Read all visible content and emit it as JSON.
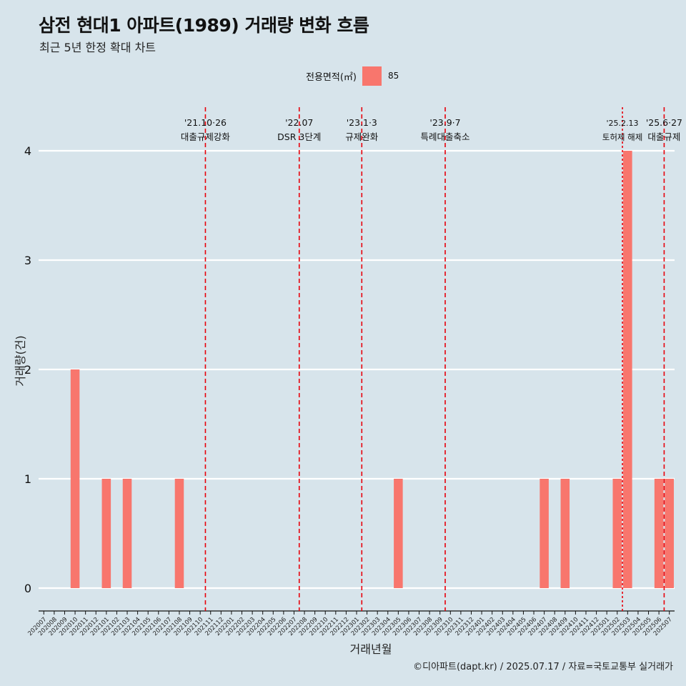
{
  "colors": {
    "background": "#d7e4eb",
    "bar": "#f8766d",
    "event_line": "#e8000b",
    "grid": "#ffffff"
  },
  "title": "삼전 현대1 아파트(1989) 거래량 변화 흐름",
  "subtitle": "최근 5년 한정 확대 차트",
  "caption": "©디아파트(dapt.kr) / 2025.07.17 / 자료=국토교통부 실거래가",
  "legend": {
    "title": "전용면적(㎡)",
    "items": [
      {
        "label": "85",
        "color": "#f8766d"
      }
    ],
    "position": "top"
  },
  "chart_data": {
    "type": "bar",
    "xlabel": "거래년월",
    "ylabel": "거래량(건)",
    "ylim": [
      0,
      4
    ],
    "yticks": [
      0,
      1,
      2,
      3,
      4
    ],
    "grid": true,
    "categories": [
      "202007",
      "202008",
      "202009",
      "202010",
      "202011",
      "202012",
      "202101",
      "202102",
      "202103",
      "202104",
      "202105",
      "202106",
      "202107",
      "202108",
      "202109",
      "202110",
      "202111",
      "202112",
      "202201",
      "202202",
      "202203",
      "202204",
      "202205",
      "202206",
      "202207",
      "202208",
      "202209",
      "202210",
      "202211",
      "202212",
      "202301",
      "202302",
      "202303",
      "202304",
      "202305",
      "202306",
      "202307",
      "202308",
      "202309",
      "202310",
      "202311",
      "202312",
      "202401",
      "202402",
      "202403",
      "202404",
      "202405",
      "202406",
      "202407",
      "202408",
      "202409",
      "202410",
      "202411",
      "202412",
      "202501",
      "202502",
      "202503",
      "202504",
      "202505",
      "202506",
      "202507"
    ],
    "series": [
      {
        "name": "85",
        "values": [
          0,
          0,
          0,
          2,
          0,
          0,
          1,
          0,
          1,
          0,
          0,
          0,
          0,
          1,
          0,
          0,
          0,
          0,
          0,
          0,
          0,
          0,
          0,
          0,
          0,
          0,
          0,
          0,
          0,
          0,
          0,
          0,
          0,
          0,
          1,
          0,
          0,
          0,
          0,
          0,
          0,
          0,
          0,
          0,
          0,
          0,
          0,
          0,
          1,
          0,
          1,
          0,
          0,
          0,
          0,
          1,
          4,
          0,
          0,
          1,
          1
        ]
      }
    ],
    "events": [
      {
        "date": "'21.10·26",
        "label": "대출규제강화",
        "at": 15.5,
        "style": "dashed"
      },
      {
        "date": "'22.07",
        "label": "DSR 3단계",
        "at": 24.5,
        "style": "dashed"
      },
      {
        "date": "'23.1·3",
        "label": "규제완화",
        "at": 30.5,
        "style": "dashed"
      },
      {
        "date": "'23.9·7",
        "label": "특례대출축소",
        "at": 38.5,
        "style": "dashed"
      },
      {
        "date": "'25.2.13",
        "label": "토허제 해제",
        "at": 55.5,
        "style": "dotted"
      },
      {
        "date": "'25.6·27",
        "label": "대출규제",
        "at": 59.5,
        "style": "dashed"
      }
    ]
  }
}
